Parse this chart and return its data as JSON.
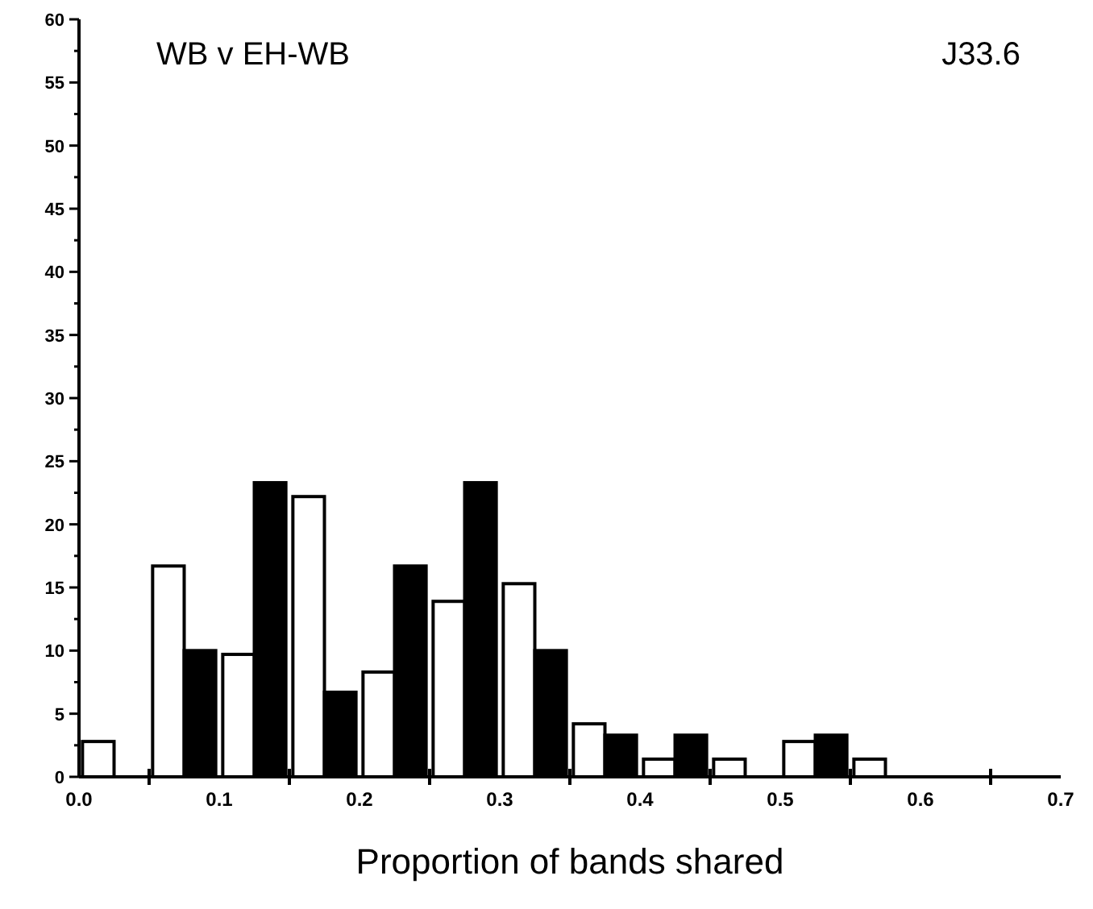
{
  "chart_data": {
    "type": "bar",
    "title": "WB v EH-WB",
    "annotations": [
      "J33.6"
    ],
    "xlabel": "Proportion of bands shared",
    "x": [
      0.025,
      0.075,
      0.125,
      0.175,
      0.225,
      0.275,
      0.325,
      0.375,
      0.425,
      0.475,
      0.525,
      0.575
    ],
    "series": [
      {
        "color": "#ffffff",
        "values": [
          2.8,
          16.7,
          9.7,
          22.2,
          8.3,
          13.9,
          15.3,
          4.2,
          1.4,
          1.4,
          2.8,
          1.4
        ]
      },
      {
        "color": "#000000",
        "values": [
          null,
          10,
          23.3,
          6.7,
          16.7,
          23.3,
          10,
          3.3,
          3.3,
          null,
          3.3,
          null
        ]
      }
    ],
    "xlim": [
      0,
      0.7
    ],
    "xticks": [
      {
        "value": 0,
        "label": "0.0"
      },
      {
        "value": 0.05,
        "label": null
      },
      {
        "value": 0.1,
        "label": "0.1"
      },
      {
        "value": 0.15,
        "label": null
      },
      {
        "value": 0.2,
        "label": "0.2"
      },
      {
        "value": 0.25,
        "label": null
      },
      {
        "value": 0.3,
        "label": "0.3"
      },
      {
        "value": 0.35,
        "label": null
      },
      {
        "value": 0.4,
        "label": "0.4"
      },
      {
        "value": 0.45,
        "label": null
      },
      {
        "value": 0.5,
        "label": "0.5"
      },
      {
        "value": 0.55,
        "label": null
      },
      {
        "value": 0.6,
        "label": "0.6"
      },
      {
        "value": 0.65,
        "label": null
      },
      {
        "value": 0.7,
        "label": "0.7"
      }
    ],
    "ylim": [
      0,
      60
    ],
    "yticks": [
      0,
      {
        "value": 2.5,
        "label": null
      },
      5,
      {
        "value": 7.5,
        "label": null
      },
      10,
      {
        "value": 12.5,
        "label": null
      },
      15,
      {
        "value": 17.5,
        "label": null
      },
      20,
      {
        "value": 22.5,
        "label": null
      },
      25,
      {
        "value": 27.5,
        "label": null
      },
      30,
      {
        "value": 32.5,
        "label": null
      },
      35,
      {
        "value": 37.5,
        "label": null
      },
      40,
      {
        "value": 42.5,
        "label": null
      },
      45,
      {
        "value": 47.5,
        "label": null
      },
      50,
      {
        "value": 52.5,
        "label": null
      },
      55,
      {
        "value": 57.5,
        "label": null
      },
      60
    ],
    "grid": false
  }
}
